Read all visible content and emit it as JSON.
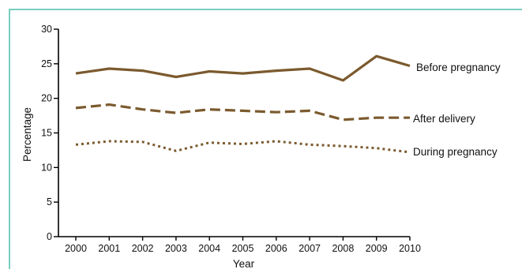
{
  "chart_data": {
    "type": "line",
    "xlabel": "Year",
    "ylabel": "Percentage",
    "ylim": [
      0,
      30
    ],
    "yticks": [
      0,
      5,
      10,
      15,
      20,
      25,
      30
    ],
    "x": [
      2000,
      2001,
      2002,
      2003,
      2004,
      2005,
      2006,
      2007,
      2008,
      2009,
      2010
    ],
    "grid": false,
    "colors": {
      "frame": "#4dbfa8",
      "series": "#7b5a2e",
      "axis": "#000000"
    },
    "series": [
      {
        "name": "Before pregnancy",
        "style": "solid",
        "values": [
          23.6,
          24.3,
          24.0,
          23.1,
          23.9,
          23.6,
          24.0,
          24.3,
          22.6,
          26.1,
          24.7
        ]
      },
      {
        "name": "After delivery",
        "style": "dashed",
        "values": [
          18.6,
          19.1,
          18.4,
          17.9,
          18.4,
          18.2,
          18.0,
          18.2,
          16.9,
          17.2,
          17.2
        ]
      },
      {
        "name": "During pregnancy",
        "style": "dotted",
        "values": [
          13.3,
          13.8,
          13.7,
          12.4,
          13.6,
          13.4,
          13.8,
          13.3,
          13.1,
          12.8,
          12.2
        ]
      }
    ]
  }
}
